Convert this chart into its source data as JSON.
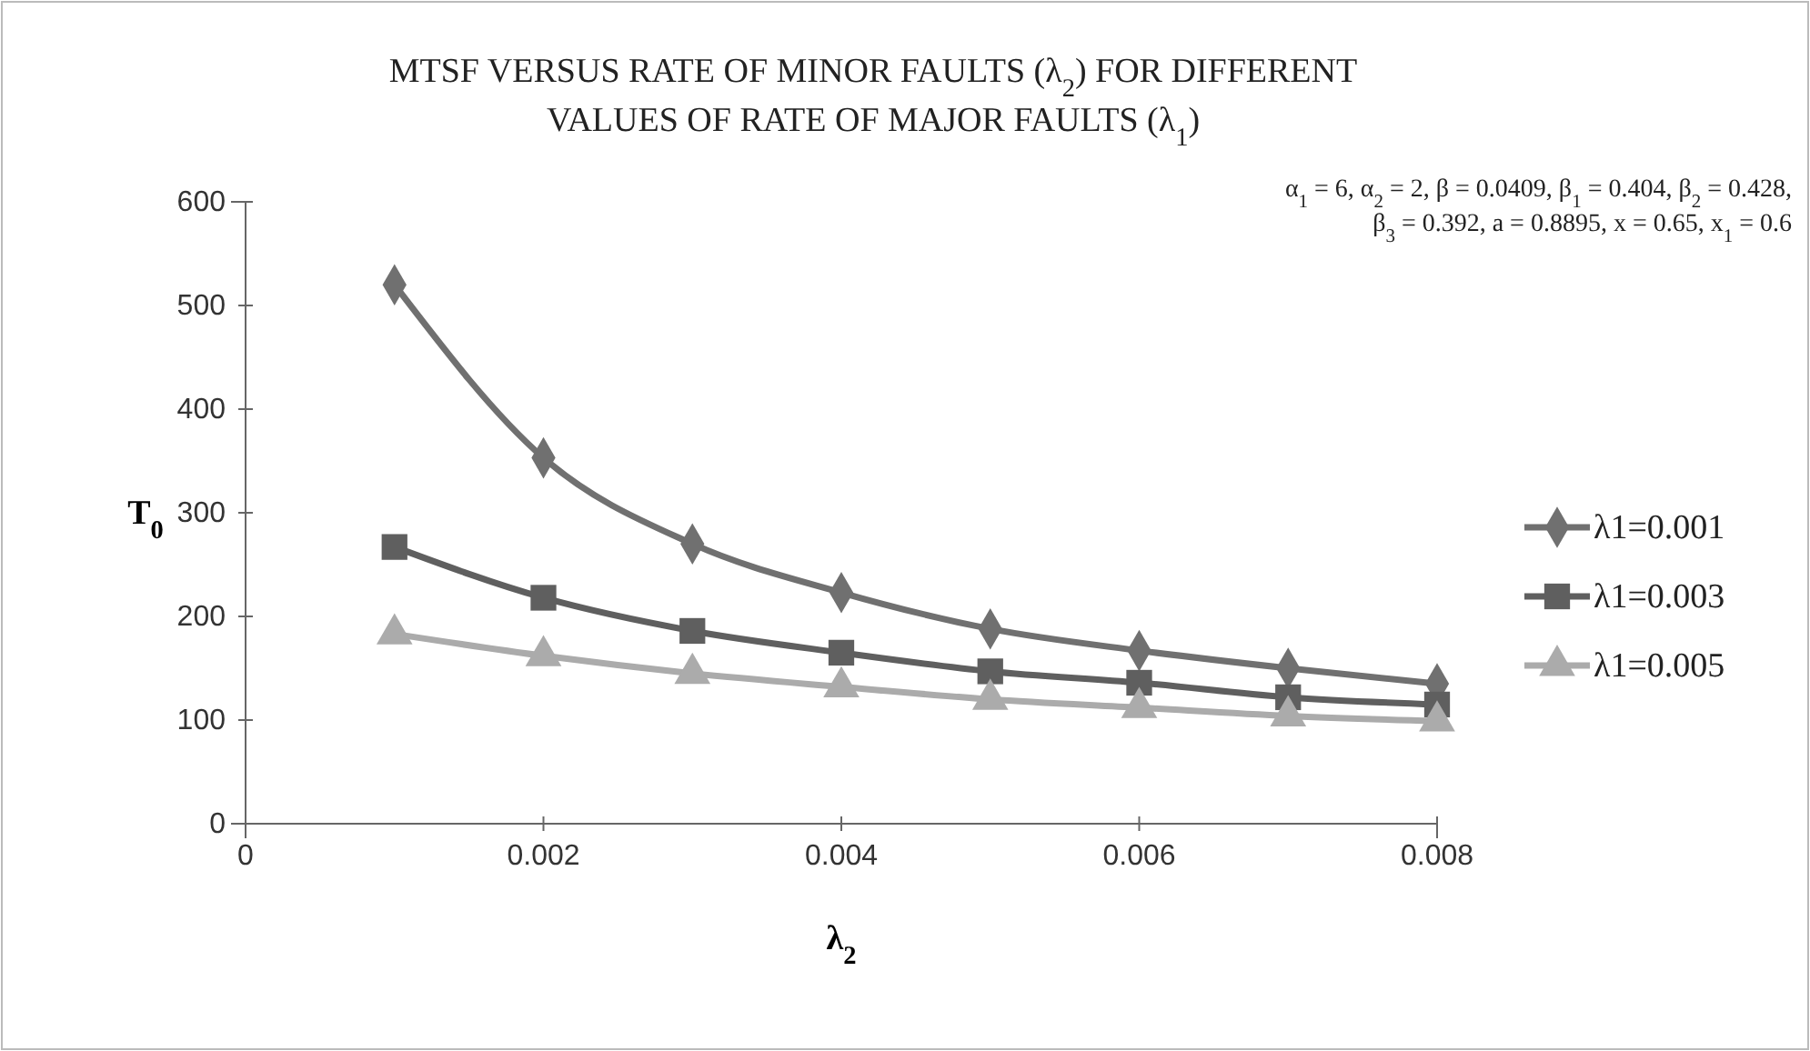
{
  "chart_data": {
    "type": "line",
    "title": "MTSF VERSUS RATE OF MINOR FAULTS (λ$_{2}$) FOR DIFFERENT VALUES OF RATE OF MAJOR FAULTS (λ$_{1}$)",
    "annotations": [
      "α$_{1}$ = 6, α$_{2}$ = 2, β = 0.0409, β$_{1}$ = 0.404, β$_{2}$ = 0.428,",
      "β$_{3}$ = 0.392, a = 0.8895, x = 0.65, x$_{1}$ = 0.6"
    ],
    "xlabel": "λ$_{2}$",
    "ylabel": "T$_{0}$",
    "x": [
      0.001,
      0.002,
      0.003,
      0.004,
      0.005,
      0.006,
      0.007,
      0.008
    ],
    "xlim": [
      0,
      0.008
    ],
    "xticks": [
      0,
      0.002,
      0.004,
      0.006,
      0.008
    ],
    "ylim": [
      0,
      600
    ],
    "yticks": [
      0,
      100,
      200,
      300,
      400,
      500,
      600
    ],
    "grid": false,
    "legend": "right",
    "line_style": "solid",
    "series": [
      {
        "name": "λ1=0.001",
        "color": "#707070",
        "marker": "diamond",
        "values": [
          520,
          353,
          270,
          223,
          188,
          167,
          150,
          135
        ]
      },
      {
        "name": "λ1=0.003",
        "color": "#5f5f5f",
        "marker": "square",
        "values": [
          267,
          218,
          186,
          165,
          147,
          136,
          122,
          115
        ]
      },
      {
        "name": "λ1=0.005",
        "color": "#ababab",
        "marker": "triangle",
        "values": [
          183,
          162,
          145,
          132,
          120,
          112,
          104,
          99
        ]
      }
    ]
  }
}
